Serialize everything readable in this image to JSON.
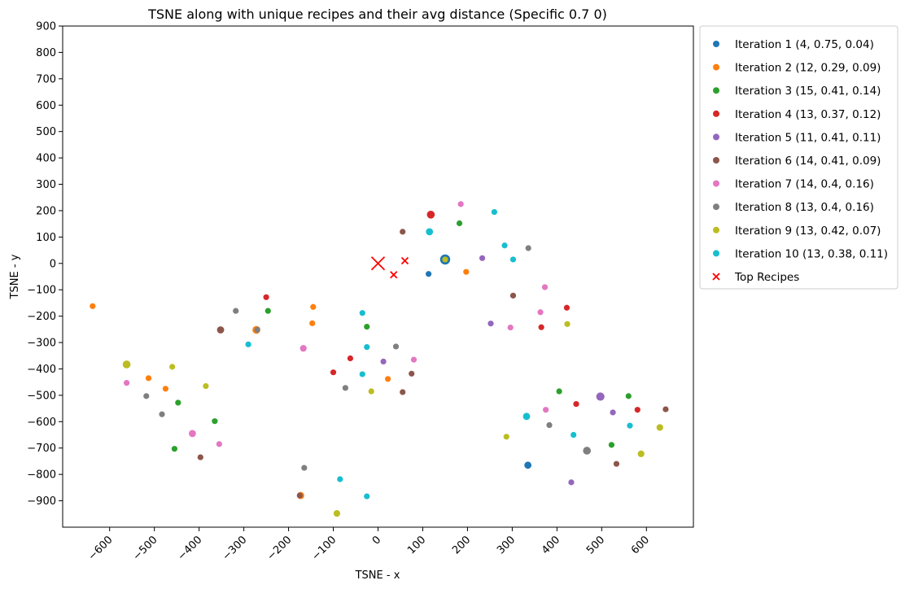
{
  "chart_data": {
    "type": "scatter",
    "title": "TSNE along with unique recipes and their avg distance (Specific 0.7 0)",
    "xlabel": "TSNE - x",
    "ylabel": "TSNE - y",
    "xlim": [
      -705,
      705
    ],
    "ylim": [
      -1000,
      900
    ],
    "x_ticks": [
      -600,
      -500,
      -400,
      -300,
      -200,
      -100,
      0,
      100,
      200,
      300,
      400,
      500,
      600
    ],
    "y_ticks": [
      900,
      800,
      700,
      600,
      500,
      400,
      300,
      200,
      100,
      0,
      -100,
      -200,
      -300,
      -400,
      -500,
      -600,
      -700,
      -800,
      -900
    ],
    "x_tick_labels": [
      "−600",
      "−500",
      "−400",
      "−300",
      "−200",
      "−100",
      "0",
      "100",
      "200",
      "300",
      "400",
      "500",
      "600"
    ],
    "y_tick_labels": [
      "900",
      "800",
      "700",
      "600",
      "500",
      "400",
      "300",
      "200",
      "100",
      "0",
      "−100",
      "−200",
      "−300",
      "−400",
      "−500",
      "−600",
      "−700",
      "−800",
      "−900"
    ],
    "grid": false,
    "legend_position": "outside-right",
    "series": [
      {
        "name": "Iteration 1 (4, 0.75, 0.04)",
        "color": "#1f77b4",
        "marker": "circle",
        "points": [
          {
            "x": 150,
            "y": 15,
            "size": 3
          },
          {
            "x": 113,
            "y": -40,
            "size": 1
          },
          {
            "x": 335,
            "y": -765,
            "size": 1.5
          },
          {
            "x": -270,
            "y": -250,
            "size": 1
          }
        ]
      },
      {
        "name": "Iteration 2 (12, 0.29, 0.09)",
        "color": "#ff7f0e",
        "marker": "circle",
        "points": [
          {
            "x": -638,
            "y": -162,
            "size": 1
          },
          {
            "x": 197,
            "y": -32,
            "size": 1
          },
          {
            "x": -145,
            "y": -165,
            "size": 1
          },
          {
            "x": -147,
            "y": -227,
            "size": 1
          },
          {
            "x": -272,
            "y": -252,
            "size": 1.8
          },
          {
            "x": -513,
            "y": -435,
            "size": 1
          },
          {
            "x": -475,
            "y": -475,
            "size": 1
          },
          {
            "x": 22,
            "y": -438,
            "size": 1
          },
          {
            "x": -173,
            "y": -880,
            "size": 1.5
          }
        ]
      },
      {
        "name": "Iteration 3 (15, 0.41, 0.14)",
        "color": "#2ca02c",
        "marker": "circle",
        "points": [
          {
            "x": 182,
            "y": 152,
            "size": 1
          },
          {
            "x": -246,
            "y": -180,
            "size": 1
          },
          {
            "x": -25,
            "y": -240,
            "size": 1
          },
          {
            "x": -447,
            "y": -528,
            "size": 1
          },
          {
            "x": -365,
            "y": -598,
            "size": 1
          },
          {
            "x": -455,
            "y": -703,
            "size": 1
          },
          {
            "x": 405,
            "y": -485,
            "size": 1
          },
          {
            "x": 560,
            "y": -503,
            "size": 1
          },
          {
            "x": 522,
            "y": -688,
            "size": 1
          },
          {
            "x": -92,
            "y": -948,
            "size": 1
          }
        ]
      },
      {
        "name": "Iteration 4 (13, 0.37, 0.12)",
        "color": "#d62728",
        "marker": "circle",
        "points": [
          {
            "x": 118,
            "y": 185,
            "size": 1.8
          },
          {
            "x": -250,
            "y": -128,
            "size": 1
          },
          {
            "x": -62,
            "y": -360,
            "size": 1
          },
          {
            "x": -100,
            "y": -413,
            "size": 1
          },
          {
            "x": 422,
            "y": -168,
            "size": 1
          },
          {
            "x": 365,
            "y": -242,
            "size": 1
          },
          {
            "x": 443,
            "y": -533,
            "size": 1
          },
          {
            "x": 580,
            "y": -555,
            "size": 1
          }
        ]
      },
      {
        "name": "Iteration 5 (11, 0.41, 0.11)",
        "color": "#9467bd",
        "marker": "circle",
        "points": [
          {
            "x": 233,
            "y": 20,
            "size": 1
          },
          {
            "x": 252,
            "y": -228,
            "size": 1
          },
          {
            "x": 12,
            "y": -372,
            "size": 1
          },
          {
            "x": 497,
            "y": -505,
            "size": 2
          },
          {
            "x": 525,
            "y": -565,
            "size": 1
          },
          {
            "x": 432,
            "y": -830,
            "size": 1
          }
        ]
      },
      {
        "name": "Iteration 6 (14, 0.41, 0.09)",
        "color": "#8c564b",
        "marker": "circle",
        "points": [
          {
            "x": 55,
            "y": 120,
            "size": 1
          },
          {
            "x": 302,
            "y": -122,
            "size": 1
          },
          {
            "x": -352,
            "y": -252,
            "size": 1.5
          },
          {
            "x": 75,
            "y": -418,
            "size": 1
          },
          {
            "x": 55,
            "y": -488,
            "size": 1
          },
          {
            "x": -397,
            "y": -735,
            "size": 1
          },
          {
            "x": 533,
            "y": -760,
            "size": 1
          },
          {
            "x": 643,
            "y": -553,
            "size": 1
          },
          {
            "x": -175,
            "y": -880,
            "size": 1
          }
        ]
      },
      {
        "name": "Iteration 7 (14, 0.4, 0.16)",
        "color": "#e377c2",
        "marker": "circle",
        "points": [
          {
            "x": 185,
            "y": 225,
            "size": 1
          },
          {
            "x": 373,
            "y": -90,
            "size": 1
          },
          {
            "x": 363,
            "y": -185,
            "size": 1
          },
          {
            "x": 296,
            "y": -243,
            "size": 1
          },
          {
            "x": -167,
            "y": -322,
            "size": 1.3
          },
          {
            "x": 80,
            "y": -365,
            "size": 1
          },
          {
            "x": -562,
            "y": -453,
            "size": 1
          },
          {
            "x": -415,
            "y": -645,
            "size": 1.5
          },
          {
            "x": -355,
            "y": -685,
            "size": 1
          },
          {
            "x": 375,
            "y": -555,
            "size": 1
          }
        ]
      },
      {
        "name": "Iteration 8 (13, 0.4, 0.16)",
        "color": "#7f7f7f",
        "marker": "circle",
        "points": [
          {
            "x": 336,
            "y": 58,
            "size": 1
          },
          {
            "x": -318,
            "y": -180,
            "size": 1
          },
          {
            "x": -270,
            "y": -252,
            "size": 1
          },
          {
            "x": 40,
            "y": -315,
            "size": 1
          },
          {
            "x": -73,
            "y": -472,
            "size": 1
          },
          {
            "x": -518,
            "y": -503,
            "size": 1
          },
          {
            "x": -483,
            "y": -572,
            "size": 1
          },
          {
            "x": 383,
            "y": -613,
            "size": 1
          },
          {
            "x": 467,
            "y": -710,
            "size": 1.8
          },
          {
            "x": -165,
            "y": -775,
            "size": 1
          }
        ]
      },
      {
        "name": "Iteration 9 (13, 0.42, 0.07)",
        "color": "#bcbd22",
        "marker": "circle",
        "points": [
          {
            "x": 150,
            "y": 15,
            "size": 1
          },
          {
            "x": 423,
            "y": -230,
            "size": 1
          },
          {
            "x": -562,
            "y": -383,
            "size": 1.8
          },
          {
            "x": -460,
            "y": -392,
            "size": 1
          },
          {
            "x": -385,
            "y": -465,
            "size": 1
          },
          {
            "x": -15,
            "y": -485,
            "size": 1
          },
          {
            "x": 287,
            "y": -657,
            "size": 1
          },
          {
            "x": 588,
            "y": -722,
            "size": 1.3
          },
          {
            "x": 630,
            "y": -622,
            "size": 1.3
          },
          {
            "x": -92,
            "y": -948,
            "size": 1.3
          }
        ]
      },
      {
        "name": "Iteration 10 (13, 0.38, 0.11)",
        "color": "#17becf",
        "marker": "circle",
        "points": [
          {
            "x": 260,
            "y": 195,
            "size": 1
          },
          {
            "x": 115,
            "y": 120,
            "size": 1.5
          },
          {
            "x": 283,
            "y": 68,
            "size": 1
          },
          {
            "x": 302,
            "y": 15,
            "size": 1
          },
          {
            "x": -35,
            "y": -188,
            "size": 1
          },
          {
            "x": -290,
            "y": -307,
            "size": 1
          },
          {
            "x": -25,
            "y": -317,
            "size": 1
          },
          {
            "x": -35,
            "y": -420,
            "size": 1
          },
          {
            "x": 332,
            "y": -580,
            "size": 1.5
          },
          {
            "x": 437,
            "y": -650,
            "size": 1
          },
          {
            "x": 563,
            "y": -615,
            "size": 1
          },
          {
            "x": -85,
            "y": -818,
            "size": 1
          },
          {
            "x": -25,
            "y": -883,
            "size": 1
          }
        ]
      },
      {
        "name": "Top Recipes",
        "color": "#ff0000",
        "marker": "x",
        "points": [
          {
            "x": 0,
            "y": 0,
            "size": 2
          },
          {
            "x": 35,
            "y": -43,
            "size": 1
          },
          {
            "x": 60,
            "y": 10,
            "size": 1
          }
        ]
      }
    ]
  }
}
